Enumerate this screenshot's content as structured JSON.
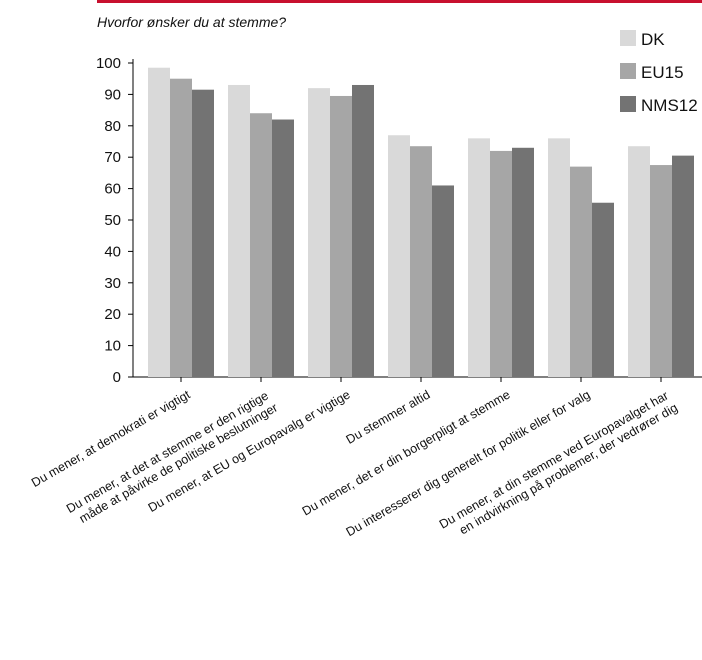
{
  "chart_data": {
    "type": "bar",
    "subtitle": "Hvorfor ønsker du at stemme?",
    "categories": [
      [
        "Du mener, at demokrati er vigtigt"
      ],
      [
        "Du mener, at det at stemme er den rigtige",
        "måde at påvirke de politiske beslutninger"
      ],
      [
        "Du mener, at EU og Europavalg er vigtige"
      ],
      [
        "Du stemmer altid"
      ],
      [
        "Du mener, det er din borgerpligt at stemme"
      ],
      [
        "Du interesserer dig generelt for politik eller for valg"
      ],
      [
        "Du mener, at din stemme ved Europavalget har",
        "en indvirkning på problemer, der vedrører dig"
      ]
    ],
    "series": [
      {
        "name": "DK",
        "color": "#d9d9d9",
        "values": [
          98.5,
          93,
          92,
          77,
          76,
          76,
          73.5
        ]
      },
      {
        "name": "EU15",
        "color": "#a6a6a6",
        "values": [
          95,
          84,
          89.5,
          73.5,
          72,
          67,
          67.5
        ]
      },
      {
        "name": "NMS12",
        "color": "#737373",
        "values": [
          91.5,
          82,
          93,
          61,
          73,
          55.5,
          70.5
        ]
      }
    ],
    "ylim": [
      0,
      100
    ],
    "yticks": [
      0,
      10,
      20,
      30,
      40,
      50,
      60,
      70,
      80,
      90,
      100
    ]
  }
}
